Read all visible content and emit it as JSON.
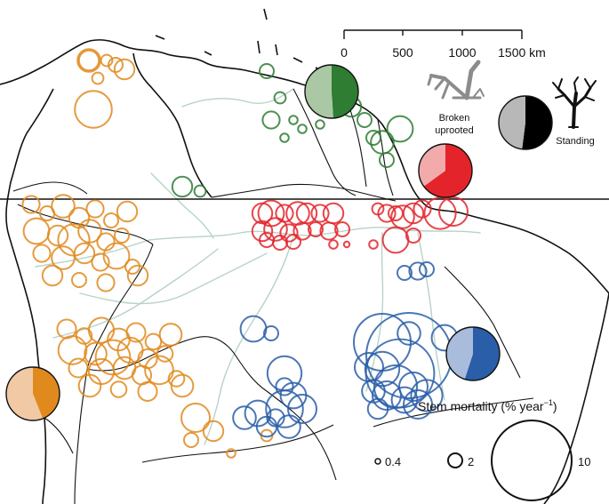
{
  "colors": {
    "orange": "#e08a1e",
    "green": "#2e7d32",
    "red": "#e3242b",
    "blue": "#2a5ea8",
    "river": "#b7d3c8"
  },
  "scale_bar": {
    "ticks": [
      "0",
      "500",
      "1000",
      "1500 km"
    ]
  },
  "labels": {
    "broken": "Broken",
    "uprooted": "uprooted",
    "standing": "Standing"
  },
  "icons": [
    "broken-tree-icon",
    "standing-tree-icon"
  ],
  "size_legend": {
    "title": "Stem mortality (% year",
    "title_sup": "−1",
    "title_close": ")",
    "items": [
      {
        "value": 0.4,
        "label": "0.4"
      },
      {
        "value": 2,
        "label": "2"
      },
      {
        "value": 10,
        "label": "10"
      }
    ]
  },
  "pies": [
    {
      "name": "green",
      "color_key": "green",
      "broken_fraction": 0.51
    },
    {
      "name": "red",
      "color_key": "red",
      "broken_fraction": 0.35
    },
    {
      "name": "standing-legend",
      "color_key": "black",
      "broken_fraction": 0.48
    },
    {
      "name": "blue",
      "color_key": "blue",
      "broken_fraction": 0.45
    },
    {
      "name": "orange",
      "color_key": "orange",
      "broken_fraction": 0.56
    }
  ],
  "sites": {
    "orange": [
      [
        0,
        0,
        0.8
      ],
      [
        20,
        0,
        0.4
      ],
      [
        30,
        5,
        0.5
      ],
      [
        40,
        10,
        0.7
      ],
      [
        10,
        20,
        0.4
      ],
      [
        5,
        55,
        1.3
      ],
      [
        0,
        0,
        0.7
      ]
    ],
    "green": [
      [
        0,
        0,
        0.5
      ],
      [
        15,
        30,
        0.4
      ],
      [
        5,
        55,
        0.6
      ],
      [
        30,
        55,
        0.3
      ],
      [
        40,
        65,
        0.3
      ],
      [
        60,
        60,
        0.3
      ],
      [
        20,
        75,
        0.3
      ],
      [
        95,
        40,
        0.7
      ],
      [
        110,
        55,
        0.5
      ],
      [
        120,
        75,
        0.5
      ],
      [
        130,
        80,
        0.8
      ],
      [
        150,
        65,
        0.9
      ],
      [
        135,
        100,
        0.5
      ],
      [
        -95,
        130,
        0.7
      ],
      [
        -75,
        135,
        0.4
      ]
    ],
    "red": [
      [
        0,
        0,
        0.7
      ],
      [
        10,
        0,
        0.9
      ],
      [
        25,
        0,
        0.6
      ],
      [
        40,
        0,
        0.8
      ],
      [
        50,
        0,
        0.7
      ],
      [
        65,
        0,
        0.6
      ],
      [
        80,
        0,
        0.7
      ],
      [
        0,
        20,
        0.7
      ],
      [
        15,
        18,
        0.8
      ],
      [
        30,
        22,
        0.6
      ],
      [
        45,
        20,
        0.6
      ],
      [
        60,
        18,
        0.5
      ],
      [
        75,
        20,
        0.6
      ],
      [
        90,
        18,
        0.5
      ],
      [
        5,
        30,
        0.5
      ],
      [
        20,
        33,
        0.5
      ],
      [
        35,
        32,
        0.5
      ],
      [
        80,
        35,
        0.3
      ],
      [
        95,
        35,
        0.2
      ],
      [
        125,
        35,
        0.3
      ],
      [
        130,
        -5,
        0.4
      ],
      [
        140,
        0,
        0.6
      ],
      [
        150,
        0,
        0.5
      ],
      [
        158,
        4,
        0.8
      ],
      [
        170,
        0,
        0.7
      ],
      [
        150,
        30,
        0.9
      ],
      [
        180,
        -5,
        0.6
      ],
      [
        200,
        0,
        1.1
      ],
      [
        215,
        -2,
        1.0
      ],
      [
        170,
        25,
        0.5
      ]
    ],
    "blue": [
      [
        0,
        0,
        0.6
      ],
      [
        -15,
        2,
        0.5
      ],
      [
        10,
        -2,
        0.5
      ],
      [
        -185,
        65,
        0.9
      ],
      [
        -165,
        70,
        0.5
      ],
      [
        -150,
        115,
        1.2
      ],
      [
        -140,
        140,
        0.9
      ],
      [
        -150,
        155,
        1.3
      ],
      [
        -130,
        155,
        1.0
      ],
      [
        -160,
        165,
        0.6
      ],
      [
        -145,
        175,
        0.8
      ],
      [
        -170,
        175,
        0.7
      ],
      [
        -180,
        160,
        0.9
      ],
      [
        -195,
        165,
        0.8
      ],
      [
        -150,
        130,
        0.6
      ],
      [
        -40,
        80,
        2.0
      ],
      [
        -10,
        95,
        3.0
      ],
      [
        -20,
        115,
        2.4
      ],
      [
        -40,
        110,
        1.2
      ],
      [
        -55,
        108,
        1.0
      ],
      [
        -25,
        130,
        1.5
      ],
      [
        -35,
        140,
        1.0
      ],
      [
        -50,
        135,
        0.8
      ],
      [
        -5,
        130,
        1.0
      ],
      [
        -15,
        145,
        0.9
      ],
      [
        0,
        150,
        1.0
      ],
      [
        10,
        140,
        1.1
      ],
      [
        -45,
        155,
        0.7
      ],
      [
        30,
        75,
        0.9
      ],
      [
        -10,
        70,
        0.8
      ]
    ]
  }
}
